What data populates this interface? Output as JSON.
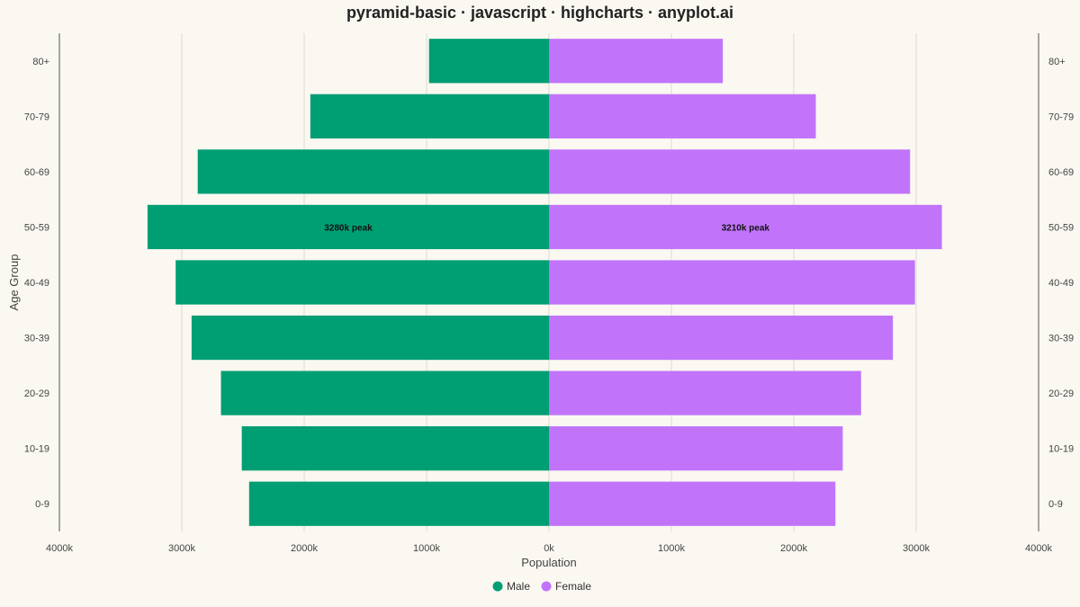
{
  "chart_data": {
    "type": "bar",
    "orientation": "horizontal",
    "title": "pyramid-basic · javascript · highcharts · anyplot.ai",
    "xlabel": "Population",
    "ylabel": "Age Group",
    "categories": [
      "80+",
      "70-79",
      "60-69",
      "50-59",
      "40-49",
      "30-39",
      "20-29",
      "10-19",
      "0-9"
    ],
    "series": [
      {
        "name": "Male",
        "color": "#009E73",
        "values": [
          980,
          1950,
          2870,
          3280,
          3050,
          2920,
          2680,
          2510,
          2450
        ],
        "direction": "left"
      },
      {
        "name": "Female",
        "color": "#C174FA",
        "values": [
          1420,
          2180,
          2950,
          3210,
          2990,
          2810,
          2550,
          2400,
          2340
        ],
        "direction": "right"
      }
    ],
    "xlim": [
      -4000,
      4000
    ],
    "x_ticks": [
      -4000,
      -3000,
      -2000,
      -1000,
      0,
      1000,
      2000,
      3000,
      4000
    ],
    "x_tick_labels": [
      "4000k",
      "3000k",
      "2000k",
      "1000k",
      "0k",
      "1000k",
      "2000k",
      "3000k",
      "4000k"
    ],
    "annotations": [
      {
        "series": "Male",
        "category": "50-59",
        "text": "3280k peak"
      },
      {
        "series": "Female",
        "category": "50-59",
        "text": "3210k peak"
      }
    ],
    "grid": true,
    "legend_position": "bottom-center"
  }
}
